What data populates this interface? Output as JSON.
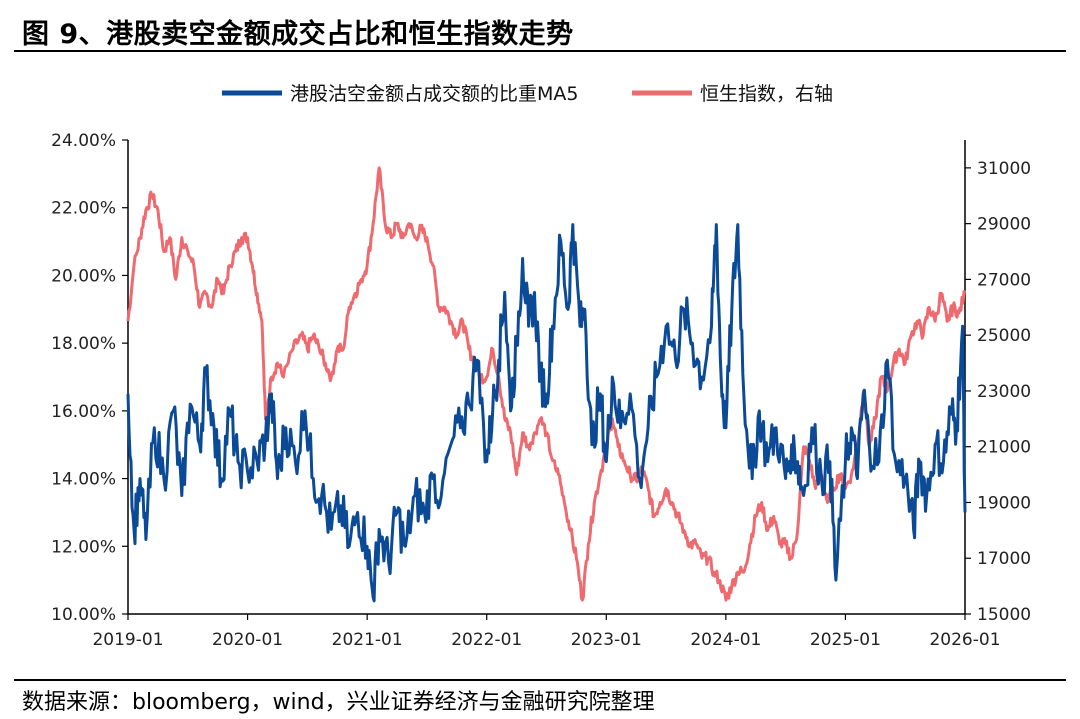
{
  "header": {
    "title": "图 9、港股卖空金额成交占比和恒生指数走势"
  },
  "footer": {
    "source": "数据来源：bloomberg，wind，兴业证券经济与金融研究院整理"
  },
  "colors": {
    "series1": "#0b4a96",
    "series2": "#ee6a6e",
    "axis": "#000000"
  },
  "chart_data": {
    "type": "line",
    "title": "",
    "x_ticks": [
      "2019-01",
      "2020-01",
      "2021-01",
      "2022-01",
      "2023-01",
      "2024-01",
      "2025-01",
      "2026-01"
    ],
    "x_range": [
      2019.0,
      2026.0
    ],
    "left_axis": {
      "ticks": [
        "24.00%",
        "22.00%",
        "20.00%",
        "18.00%",
        "16.00%",
        "14.00%",
        "12.00%",
        "10.00%"
      ],
      "range": [
        10,
        24
      ]
    },
    "right_axis": {
      "ticks": [
        "31000",
        "29000",
        "27000",
        "25000",
        "23000",
        "21000",
        "19000",
        "17000",
        "15000"
      ],
      "range": [
        15000,
        32000
      ]
    },
    "series": [
      {
        "name": "港股沽空金额占成交额的比重MA5",
        "axis": "left",
        "points": [
          [
            2019.0,
            16.5
          ],
          [
            2019.05,
            12.5
          ],
          [
            2019.1,
            14.0
          ],
          [
            2019.15,
            12.2
          ],
          [
            2019.22,
            15.5
          ],
          [
            2019.3,
            14.0
          ],
          [
            2019.38,
            16.0
          ],
          [
            2019.45,
            13.5
          ],
          [
            2019.52,
            16.2
          ],
          [
            2019.6,
            15.0
          ],
          [
            2019.65,
            17.2
          ],
          [
            2019.72,
            15.5
          ],
          [
            2019.78,
            14.0
          ],
          [
            2019.85,
            16.0
          ],
          [
            2019.92,
            14.5
          ],
          [
            2020.0,
            14.2
          ],
          [
            2020.08,
            14.5
          ],
          [
            2020.15,
            15.2
          ],
          [
            2020.2,
            16.5
          ],
          [
            2020.25,
            14.0
          ],
          [
            2020.32,
            15.5
          ],
          [
            2020.4,
            14.5
          ],
          [
            2020.48,
            16.0
          ],
          [
            2020.55,
            14.0
          ],
          [
            2020.62,
            13.5
          ],
          [
            2020.7,
            12.5
          ],
          [
            2020.78,
            13.2
          ],
          [
            2020.85,
            12.0
          ],
          [
            2020.92,
            13.0
          ],
          [
            2021.0,
            12.0
          ],
          [
            2021.05,
            10.5
          ],
          [
            2021.1,
            12.5
          ],
          [
            2021.18,
            11.5
          ],
          [
            2021.25,
            13.0
          ],
          [
            2021.32,
            12.0
          ],
          [
            2021.4,
            13.5
          ],
          [
            2021.48,
            13.0
          ],
          [
            2021.55,
            14.0
          ],
          [
            2021.62,
            13.5
          ],
          [
            2021.7,
            15.0
          ],
          [
            2021.78,
            15.5
          ],
          [
            2021.85,
            16.2
          ],
          [
            2021.92,
            17.5
          ],
          [
            2022.0,
            14.5
          ],
          [
            2022.05,
            16.0
          ],
          [
            2022.1,
            17.5
          ],
          [
            2022.15,
            19.5
          ],
          [
            2022.2,
            16.0
          ],
          [
            2022.25,
            18.0
          ],
          [
            2022.3,
            20.5
          ],
          [
            2022.35,
            18.5
          ],
          [
            2022.4,
            19.5
          ],
          [
            2022.45,
            17.0
          ],
          [
            2022.5,
            16.5
          ],
          [
            2022.55,
            18.5
          ],
          [
            2022.62,
            21.0
          ],
          [
            2022.68,
            19.0
          ],
          [
            2022.72,
            21.5
          ],
          [
            2022.78,
            18.5
          ],
          [
            2022.82,
            19.0
          ],
          [
            2022.88,
            15.0
          ],
          [
            2022.95,
            16.5
          ],
          [
            2023.0,
            14.5
          ],
          [
            2023.05,
            17.0
          ],
          [
            2023.12,
            15.5
          ],
          [
            2023.2,
            16.5
          ],
          [
            2023.28,
            14.0
          ],
          [
            2023.35,
            15.5
          ],
          [
            2023.42,
            17.0
          ],
          [
            2023.5,
            18.5
          ],
          [
            2023.58,
            17.5
          ],
          [
            2023.65,
            19.0
          ],
          [
            2023.72,
            18.0
          ],
          [
            2023.8,
            17.0
          ],
          [
            2023.88,
            18.5
          ],
          [
            2023.92,
            21.5
          ],
          [
            2023.96,
            17.0
          ],
          [
            2024.0,
            15.5
          ],
          [
            2024.05,
            19.0
          ],
          [
            2024.1,
            21.5
          ],
          [
            2024.15,
            16.5
          ],
          [
            2024.22,
            14.0
          ],
          [
            2024.28,
            16.0
          ],
          [
            2024.35,
            14.5
          ],
          [
            2024.42,
            15.5
          ],
          [
            2024.5,
            14.0
          ],
          [
            2024.55,
            15.0
          ],
          [
            2024.6,
            14.5
          ],
          [
            2024.65,
            13.5
          ],
          [
            2024.72,
            15.5
          ],
          [
            2024.8,
            14.0
          ],
          [
            2024.87,
            14.5
          ],
          [
            2024.92,
            11.0
          ],
          [
            2025.0,
            14.5
          ],
          [
            2025.05,
            15.5
          ],
          [
            2025.1,
            14.0
          ],
          [
            2025.15,
            16.5
          ],
          [
            2025.2,
            15.0
          ],
          [
            2025.28,
            14.5
          ],
          [
            2025.35,
            17.5
          ],
          [
            2025.42,
            14.5
          ],
          [
            2025.5,
            14.0
          ],
          [
            2025.57,
            12.5
          ],
          [
            2025.62,
            14.5
          ],
          [
            2025.68,
            13.5
          ],
          [
            2025.75,
            15.0
          ],
          [
            2025.82,
            14.5
          ],
          [
            2025.88,
            16.0
          ],
          [
            2025.93,
            15.5
          ],
          [
            2025.98,
            18.5
          ],
          [
            2026.0,
            13.0
          ]
        ]
      },
      {
        "name": "恒生指数，右轴",
        "axis": "right",
        "points": [
          [
            2019.0,
            25500
          ],
          [
            2019.05,
            27500
          ],
          [
            2019.1,
            28500
          ],
          [
            2019.15,
            29500
          ],
          [
            2019.2,
            30000
          ],
          [
            2019.25,
            29500
          ],
          [
            2019.3,
            28000
          ],
          [
            2019.35,
            28500
          ],
          [
            2019.4,
            27000
          ],
          [
            2019.45,
            28500
          ],
          [
            2019.5,
            28000
          ],
          [
            2019.55,
            27500
          ],
          [
            2019.6,
            26000
          ],
          [
            2019.65,
            26500
          ],
          [
            2019.7,
            26000
          ],
          [
            2019.75,
            27000
          ],
          [
            2019.8,
            26500
          ],
          [
            2019.85,
            27500
          ],
          [
            2019.9,
            28000
          ],
          [
            2019.95,
            28500
          ],
          [
            2020.0,
            28500
          ],
          [
            2020.04,
            27500
          ],
          [
            2020.08,
            26500
          ],
          [
            2020.12,
            25500
          ],
          [
            2020.15,
            22000
          ],
          [
            2020.2,
            23500
          ],
          [
            2020.25,
            24000
          ],
          [
            2020.3,
            23500
          ],
          [
            2020.38,
            24500
          ],
          [
            2020.45,
            25000
          ],
          [
            2020.5,
            24500
          ],
          [
            2020.55,
            25000
          ],
          [
            2020.6,
            24500
          ],
          [
            2020.65,
            24000
          ],
          [
            2020.7,
            23500
          ],
          [
            2020.75,
            24500
          ],
          [
            2020.8,
            24500
          ],
          [
            2020.85,
            26000
          ],
          [
            2020.9,
            26500
          ],
          [
            2020.95,
            27000
          ],
          [
            2021.0,
            27500
          ],
          [
            2021.05,
            29000
          ],
          [
            2021.1,
            31000
          ],
          [
            2021.15,
            29000
          ],
          [
            2021.2,
            28500
          ],
          [
            2021.25,
            29000
          ],
          [
            2021.3,
            28500
          ],
          [
            2021.35,
            29000
          ],
          [
            2021.4,
            28500
          ],
          [
            2021.45,
            28800
          ],
          [
            2021.5,
            28500
          ],
          [
            2021.55,
            27500
          ],
          [
            2021.6,
            26000
          ],
          [
            2021.65,
            26000
          ],
          [
            2021.7,
            25500
          ],
          [
            2021.75,
            25000
          ],
          [
            2021.8,
            25500
          ],
          [
            2021.85,
            24500
          ],
          [
            2021.9,
            24000
          ],
          [
            2021.95,
            23500
          ],
          [
            2022.0,
            23500
          ],
          [
            2022.05,
            24500
          ],
          [
            2022.1,
            23500
          ],
          [
            2022.15,
            22000
          ],
          [
            2022.2,
            21500
          ],
          [
            2022.25,
            20000
          ],
          [
            2022.3,
            21500
          ],
          [
            2022.35,
            21000
          ],
          [
            2022.4,
            21500
          ],
          [
            2022.45,
            22000
          ],
          [
            2022.5,
            21500
          ],
          [
            2022.55,
            20500
          ],
          [
            2022.6,
            20000
          ],
          [
            2022.65,
            19000
          ],
          [
            2022.7,
            18000
          ],
          [
            2022.75,
            17000
          ],
          [
            2022.8,
            15500
          ],
          [
            2022.85,
            17500
          ],
          [
            2022.9,
            19000
          ],
          [
            2022.95,
            20000
          ],
          [
            2023.0,
            21000
          ],
          [
            2023.05,
            22000
          ],
          [
            2023.1,
            21000
          ],
          [
            2023.15,
            20500
          ],
          [
            2023.2,
            20000
          ],
          [
            2023.25,
            19800
          ],
          [
            2023.3,
            20200
          ],
          [
            2023.35,
            19500
          ],
          [
            2023.4,
            18500
          ],
          [
            2023.45,
            19000
          ],
          [
            2023.5,
            19500
          ],
          [
            2023.55,
            19000
          ],
          [
            2023.6,
            18500
          ],
          [
            2023.65,
            18000
          ],
          [
            2023.7,
            17500
          ],
          [
            2023.75,
            17500
          ],
          [
            2023.8,
            17000
          ],
          [
            2023.85,
            17000
          ],
          [
            2023.9,
            16500
          ],
          [
            2023.95,
            16200
          ],
          [
            2024.0,
            15500
          ],
          [
            2024.05,
            16000
          ],
          [
            2024.1,
            16500
          ],
          [
            2024.15,
            16500
          ],
          [
            2024.2,
            17500
          ],
          [
            2024.25,
            18500
          ],
          [
            2024.3,
            19000
          ],
          [
            2024.35,
            18000
          ],
          [
            2024.4,
            18500
          ],
          [
            2024.45,
            17500
          ],
          [
            2024.5,
            17500
          ],
          [
            2024.55,
            17000
          ],
          [
            2024.6,
            18000
          ],
          [
            2024.65,
            21000
          ],
          [
            2024.7,
            20500
          ],
          [
            2024.75,
            19500
          ],
          [
            2024.8,
            20000
          ],
          [
            2024.85,
            19000
          ],
          [
            2024.9,
            19500
          ],
          [
            2024.95,
            20000
          ],
          [
            2025.0,
            19500
          ],
          [
            2025.05,
            20000
          ],
          [
            2025.1,
            21000
          ],
          [
            2025.15,
            23000
          ],
          [
            2025.2,
            21000
          ],
          [
            2025.25,
            22000
          ],
          [
            2025.3,
            23500
          ],
          [
            2025.35,
            23000
          ],
          [
            2025.4,
            24000
          ],
          [
            2025.45,
            24500
          ],
          [
            2025.5,
            24000
          ],
          [
            2025.55,
            25000
          ],
          [
            2025.6,
            25500
          ],
          [
            2025.65,
            25000
          ],
          [
            2025.7,
            26000
          ],
          [
            2025.75,
            25500
          ],
          [
            2025.8,
            26500
          ],
          [
            2025.85,
            25500
          ],
          [
            2025.9,
            26000
          ],
          [
            2025.95,
            25800
          ],
          [
            2026.0,
            26500
          ]
        ]
      }
    ],
    "legend": [
      "港股沽空金额占成交额的比重MA5",
      "恒生指数，右轴"
    ],
    "legend_position": "top"
  }
}
